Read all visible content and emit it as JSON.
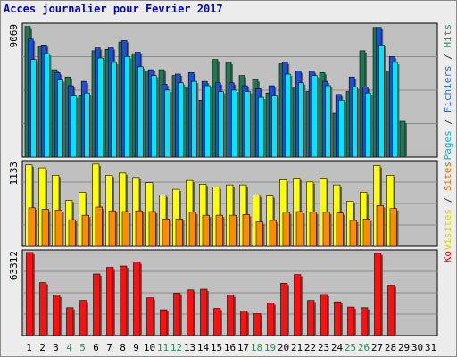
{
  "title": "Acces journalier pour Fevrier 2017",
  "chart_data": {
    "type": "bar",
    "x": [
      "1",
      "2",
      "3",
      "4",
      "5",
      "6",
      "7",
      "8",
      "9",
      "10",
      "11",
      "12",
      "13",
      "14",
      "15",
      "16",
      "17",
      "18",
      "19",
      "20",
      "21",
      "22",
      "23",
      "24",
      "25",
      "26",
      "27",
      "28",
      "29",
      "30",
      "31"
    ],
    "weekend_days": [
      "4",
      "5",
      "11",
      "12",
      "18",
      "19",
      "25",
      "26"
    ],
    "panels": [
      {
        "name": "pages-fichiers-hits",
        "ymax_label": "9069",
        "ymax": 9069,
        "right_labels": [
          {
            "text": "Pages",
            "color": "#00b8d8"
          },
          {
            "text": " / ",
            "color": "#333333"
          },
          {
            "text": "Fichiers",
            "color": "#2a6ae0"
          },
          {
            "text": " / ",
            "color": "#333333"
          },
          {
            "text": "Hits",
            "color": "#2e8b57"
          }
        ],
        "series": [
          {
            "name": "Hits",
            "color": "#1e7a52",
            "values": [
              8967,
              7600,
              6000,
              5500,
              4200,
              7300,
              7400,
              7900,
              7100,
              5900,
              6000,
              5600,
              4800,
              3900,
              6700,
              6500,
              5600,
              5300,
              4400,
              6400,
              4800,
              4500,
              5800,
              3000,
              4500,
              7300,
              8900,
              5900,
              2450,
              0,
              0
            ]
          },
          {
            "name": "Fichiers",
            "color": "#1a4fd8",
            "values": [
              8100,
              7700,
              5800,
              4900,
              5200,
              7500,
              7500,
              8000,
              7200,
              6000,
              5000,
              5700,
              5800,
              5200,
              5100,
              5100,
              4900,
              4700,
              4900,
              6500,
              5900,
              5900,
              5200,
              4300,
              5500,
              4800,
              8900,
              6900,
              0,
              0,
              0
            ]
          },
          {
            "name": "Pages",
            "color": "#00e8f8",
            "values": [
              6700,
              7100,
              5300,
              4200,
              4400,
              6800,
              6500,
              6900,
              6200,
              5600,
              4600,
              5100,
              5200,
              4900,
              4500,
              4600,
              4500,
              4100,
              4200,
              5700,
              5100,
              5600,
              4900,
              3900,
              4800,
              4400,
              7700,
              6500,
              0,
              0,
              0
            ]
          }
        ]
      },
      {
        "name": "visites-sites",
        "ymax_label": "1133",
        "ymax": 1133,
        "right_labels": [
          {
            "text": "Visites",
            "color": "#d8d800"
          },
          {
            "text": " / ",
            "color": "#333333"
          },
          {
            "text": "Sites",
            "color": "#e07000"
          }
        ],
        "series": [
          {
            "name": "Visites",
            "color": "#ffff00",
            "values": [
              1100,
              1060,
              960,
              620,
              730,
              1110,
              960,
              990,
              930,
              860,
              690,
              770,
              890,
              840,
              800,
              830,
              830,
              690,
              680,
              900,
              920,
              870,
              920,
              830,
              610,
              730,
              1090,
              960,
              0,
              0,
              0
            ]
          },
          {
            "name": "Sites",
            "color": "#ff8c00",
            "values": [
              520,
              500,
              490,
              360,
              420,
              530,
              480,
              470,
              480,
              470,
              370,
              370,
              460,
              420,
              420,
              420,
              430,
              330,
              350,
              460,
              470,
              460,
              460,
              450,
              350,
              370,
              550,
              510,
              0,
              0,
              0
            ]
          }
        ]
      },
      {
        "name": "ko",
        "ymax_label": "63312",
        "ymax": 63312,
        "right_labels": [
          {
            "text": "Ko",
            "color": "#ff0000"
          }
        ],
        "series": [
          {
            "name": "Ko",
            "color": "#ff1010",
            "values": [
              62700,
              40000,
              30500,
              21000,
              26500,
              46500,
              51500,
              52500,
              55500,
              28500,
              19500,
              32000,
              34500,
              35000,
              20500,
              30500,
              18500,
              16500,
              24500,
              39500,
              46000,
              26500,
              31000,
              25500,
              21500,
              21000,
              62000,
              38000,
              0,
              0,
              0
            ]
          }
        ]
      }
    ]
  }
}
